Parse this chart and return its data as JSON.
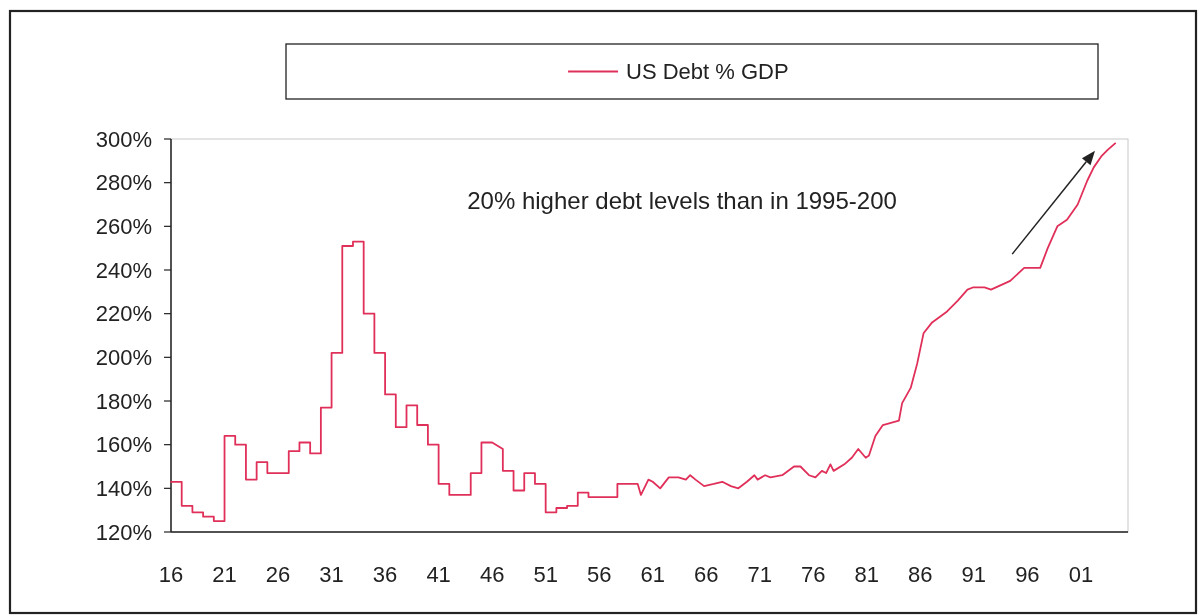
{
  "chart_data": {
    "type": "line",
    "series": [
      {
        "name": "US Debt % GDP",
        "color": "#e0305a",
        "x": [
          1916,
          1917,
          1917,
          1918,
          1918,
          1919,
          1919,
          1920,
          1920,
          1921,
          1921,
          1922,
          1922,
          1923,
          1923,
          1924,
          1924,
          1925,
          1925,
          1927,
          1927,
          1928,
          1928,
          1929,
          1929,
          1930,
          1930,
          1931,
          1931,
          1932,
          1932,
          1933,
          1933,
          1934,
          1934,
          1935,
          1935,
          1936,
          1936,
          1937,
          1937,
          1938,
          1938,
          1939,
          1939,
          1940,
          1940,
          1941,
          1941,
          1942,
          1942,
          1944,
          1944,
          1945,
          1945,
          1946,
          1947,
          1947,
          1948,
          1948,
          1949,
          1949,
          1950,
          1950,
          1951,
          1951,
          1952,
          1952,
          1953,
          1953,
          1954,
          1954,
          1955,
          1955,
          1957.7,
          1957.7,
          1959.6,
          1959.9,
          1960.6,
          1961,
          1961.7,
          1962.5,
          1963.4,
          1964.1,
          1964.5,
          1965,
          1965.8,
          1966.7,
          1967.5,
          1968.3,
          1969,
          1969.8,
          1970.5,
          1970.8,
          1971.5,
          1972,
          1973.1,
          1974.2,
          1974.8,
          1975.6,
          1976.2,
          1976.8,
          1977.2,
          1977.6,
          1977.9,
          1978.9,
          1979.6,
          1980.2,
          1980.9,
          1981.2,
          1981.8,
          1982.5,
          1984,
          1984.3,
          1985.1,
          1985.7,
          1986.3,
          1987.1,
          1988.5,
          1989.5,
          1990.4,
          1990.9,
          1992,
          1992.6,
          1994.4,
          1995.7,
          1997.2,
          1997.9,
          1998.8,
          1999.7,
          2000.7,
          2001.6,
          2002.2,
          2002.9,
          2003.5,
          2004.2
        ],
        "values": [
          143,
          143,
          132,
          132,
          129,
          129,
          127,
          127,
          125,
          125,
          164,
          164,
          160,
          160,
          144,
          144,
          152,
          152,
          147,
          147,
          157,
          157,
          161,
          161,
          156,
          156,
          177,
          177,
          202,
          202,
          251,
          251,
          253,
          253,
          220,
          220,
          202,
          202,
          183,
          183,
          168,
          168,
          178,
          178,
          169,
          169,
          160,
          160,
          142,
          142,
          137,
          137,
          147,
          147,
          161,
          161,
          158,
          148,
          148,
          139,
          139,
          147,
          147,
          142,
          142,
          129,
          129,
          131,
          131,
          132,
          132,
          138,
          138,
          136,
          136,
          142,
          142,
          137,
          144,
          143,
          140,
          145,
          145,
          144,
          146,
          144,
          141,
          142,
          143,
          141,
          140,
          143,
          146,
          144,
          146,
          145,
          146,
          150,
          150,
          146,
          145,
          148,
          147,
          151,
          148,
          151,
          154,
          158,
          154,
          155,
          164,
          169,
          171,
          179,
          186,
          197,
          211,
          216,
          221,
          226,
          231,
          232,
          232,
          231,
          235,
          241,
          241,
          250,
          260,
          263,
          270,
          281,
          287,
          292,
          295,
          298
        ]
      }
    ],
    "xlim": [
      1916,
      2005.4
    ],
    "xticks": [
      {
        "value": 1916,
        "label": "16"
      },
      {
        "value": 1921,
        "label": "21"
      },
      {
        "value": 1926,
        "label": "26"
      },
      {
        "value": 1931,
        "label": "31"
      },
      {
        "value": 1936,
        "label": "36"
      },
      {
        "value": 1941,
        "label": "41"
      },
      {
        "value": 1946,
        "label": "46"
      },
      {
        "value": 1951,
        "label": "51"
      },
      {
        "value": 1956,
        "label": "56"
      },
      {
        "value": 1961,
        "label": "61"
      },
      {
        "value": 1966,
        "label": "66"
      },
      {
        "value": 1971,
        "label": "71"
      },
      {
        "value": 1976,
        "label": "76"
      },
      {
        "value": 1981,
        "label": "81"
      },
      {
        "value": 1986,
        "label": "86"
      },
      {
        "value": 1991,
        "label": "91"
      },
      {
        "value": 1996,
        "label": "96"
      },
      {
        "value": 2001,
        "label": "01"
      }
    ],
    "ylim": [
      120,
      300
    ],
    "yticks": [
      {
        "value": 120,
        "label": "120%"
      },
      {
        "value": 140,
        "label": "140%"
      },
      {
        "value": 160,
        "label": "160%"
      },
      {
        "value": 180,
        "label": "180%"
      },
      {
        "value": 200,
        "label": "200%"
      },
      {
        "value": 220,
        "label": "220%"
      },
      {
        "value": 240,
        "label": "240%"
      },
      {
        "value": 260,
        "label": "260%"
      },
      {
        "value": 280,
        "label": "280%"
      },
      {
        "value": 300,
        "label": "300%"
      }
    ],
    "annotations": [
      "20% higher debt levels than in 1995-200"
    ],
    "legend": "top"
  }
}
